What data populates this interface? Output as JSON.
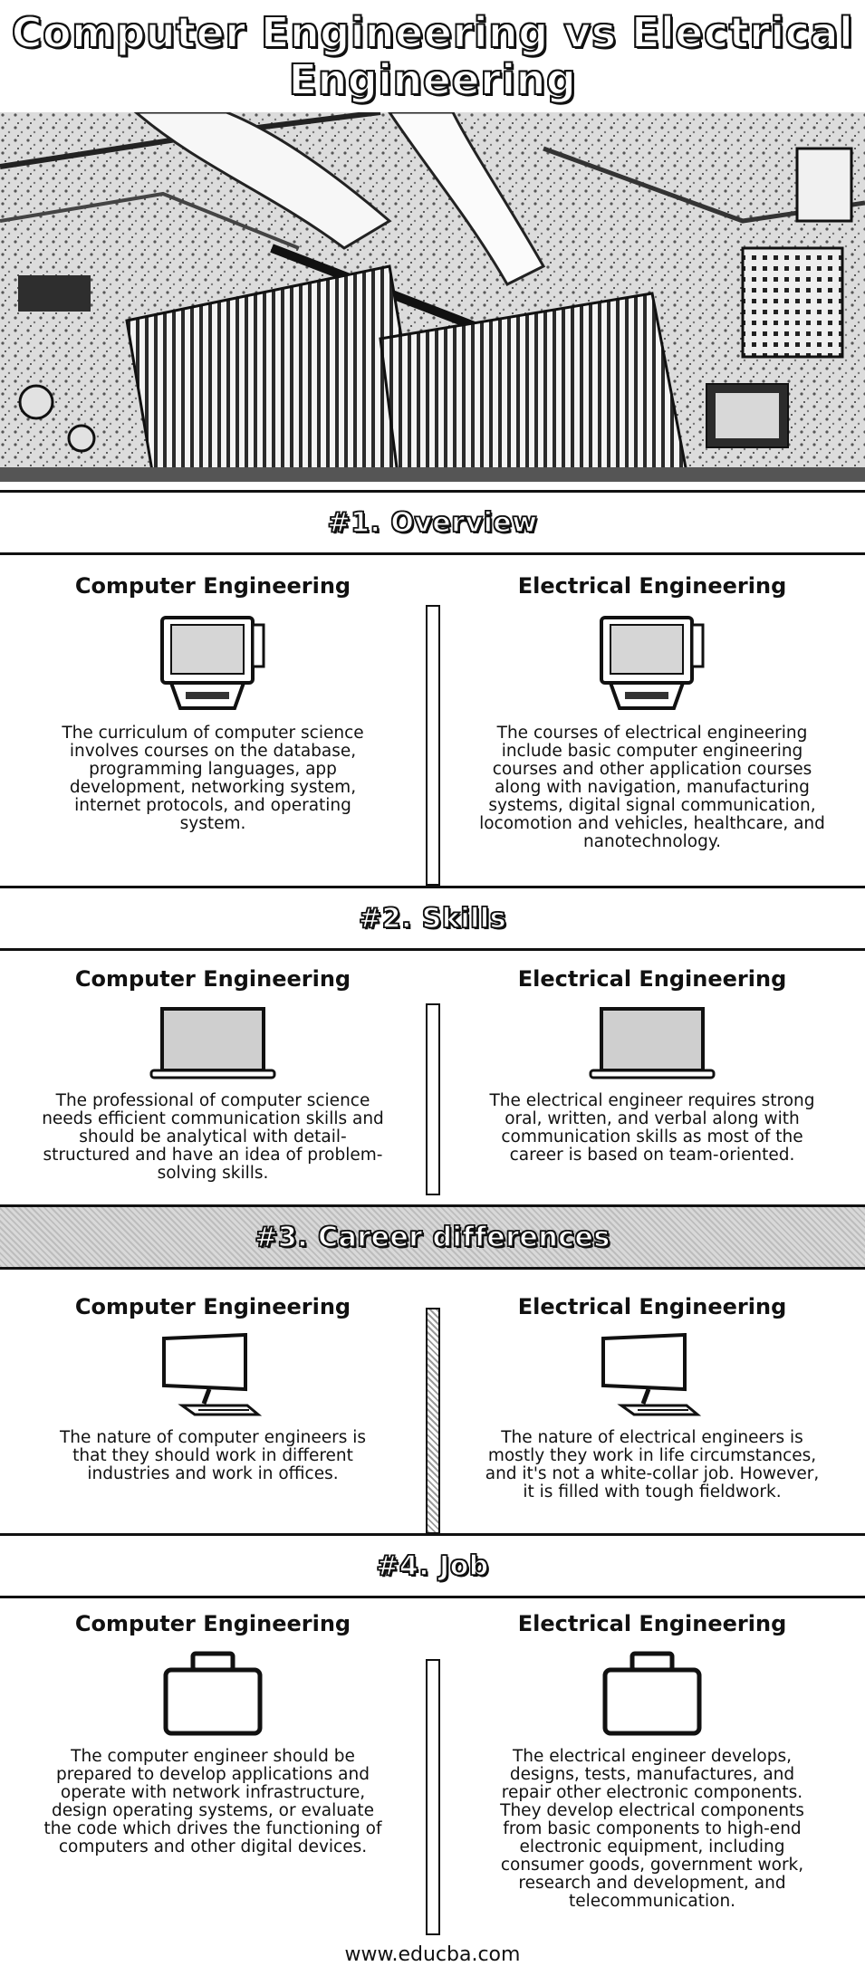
{
  "title": {
    "line1": "Computer Engineering vs Electrical",
    "line2": "Engineering"
  },
  "columns": {
    "left": "Computer Engineering",
    "right": "Electrical Engineering"
  },
  "sections": [
    {
      "heading": "#1. Overview",
      "left_text": "The curriculum of computer science involves courses on the database, programming languages, app development, networking system, internet protocols, and operating system.",
      "right_text": "The courses of electrical engineering include basic computer engineering courses and other application courses along with navigation, manufacturing systems, digital signal communication, locomotion and vehicles, healthcare, and nanotechnology.",
      "icon": "crt-monitor-icon"
    },
    {
      "heading": "#2. Skills",
      "left_text": "The professional of computer science needs efficient communication skills and should be analytical with detail-structured and have an idea of problem-solving skills.",
      "right_text": "The electrical engineer requires strong oral, written, and verbal along with communication skills as most of the career is based on team-oriented.",
      "icon": "laptop-icon"
    },
    {
      "heading": "#3. Career differences",
      "left_text": "The nature of computer engineers is that they should work in different industries and work in offices.",
      "right_text": "The nature of electrical engineers is mostly they work in life circumstances, and it's not a white-collar job. However, it is filled with tough fieldwork.",
      "icon": "desktop-monitor-icon"
    },
    {
      "heading": "#4. Job",
      "left_text": "The computer engineer should be prepared to develop applications and operate with network infrastructure, design operating systems, or evaluate the code which drives the functioning of computers and other digital devices.",
      "right_text": "The electrical engineer develops, designs, tests, manufactures, and repair other electronic components. They develop electrical components from basic components to high-end electronic equipment, including consumer goods, government work, research and development, and telecommunication.",
      "icon": "briefcase-icon"
    }
  ],
  "footer": "www.educba.com"
}
